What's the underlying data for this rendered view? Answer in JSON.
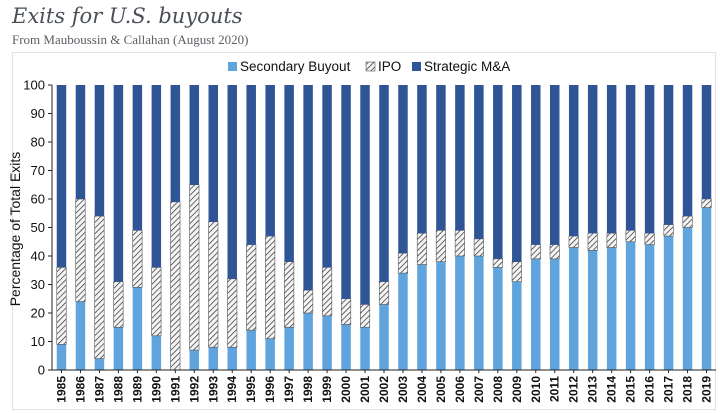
{
  "header": {
    "title": "Exits for U.S. buyouts",
    "subtitle": "From Mauboussin & Callahan (August 2020)"
  },
  "colors": {
    "secondary": "#5fa4dc",
    "ipo_stripe": "#2b2b2b",
    "ipo_bg": "#f4f4f4",
    "strategic": "#2f5597"
  },
  "chart_data": {
    "type": "bar",
    "stacked": true,
    "ylabel": "Percentage of Total Exits",
    "xlabel": "",
    "ylim": [
      0,
      100
    ],
    "yticks": [
      0,
      10,
      20,
      30,
      40,
      50,
      60,
      70,
      80,
      90,
      100
    ],
    "legend_position": "top",
    "categories": [
      "1985",
      "1986",
      "1987",
      "1988",
      "1989",
      "1990",
      "1991",
      "1992",
      "1993",
      "1994",
      "1995",
      "1996",
      "1997",
      "1998",
      "1999",
      "2000",
      "2001",
      "2002",
      "2003",
      "2004",
      "2005",
      "2006",
      "2007",
      "2008",
      "2009",
      "2010",
      "2011",
      "2012",
      "2013",
      "2014",
      "2015",
      "2016",
      "2017",
      "2018",
      "2019"
    ],
    "series": [
      {
        "name": "Secondary Buyout",
        "values": [
          9,
          24,
          4,
          15,
          29,
          12,
          0,
          7,
          8,
          8,
          14,
          11,
          15,
          20,
          19,
          16,
          15,
          23,
          34,
          37,
          38,
          40,
          40,
          36,
          31,
          39,
          39,
          43,
          42,
          43,
          45,
          44,
          47,
          50,
          57
        ]
      },
      {
        "name": "IPO",
        "values": [
          27,
          36,
          50,
          16,
          20,
          24,
          59,
          58,
          44,
          24,
          30,
          36,
          23,
          8,
          17,
          9,
          8,
          8,
          7,
          11,
          11,
          9,
          6,
          3,
          7,
          5,
          5,
          4,
          6,
          5,
          4,
          4,
          4,
          4,
          3
        ]
      },
      {
        "name": "Strategic M&A",
        "values": [
          64,
          40,
          46,
          69,
          51,
          64,
          41,
          35,
          48,
          68,
          56,
          53,
          62,
          72,
          64,
          75,
          77,
          69,
          59,
          52,
          51,
          51,
          54,
          61,
          62,
          56,
          56,
          53,
          52,
          52,
          51,
          52,
          49,
          46,
          40
        ]
      }
    ]
  }
}
